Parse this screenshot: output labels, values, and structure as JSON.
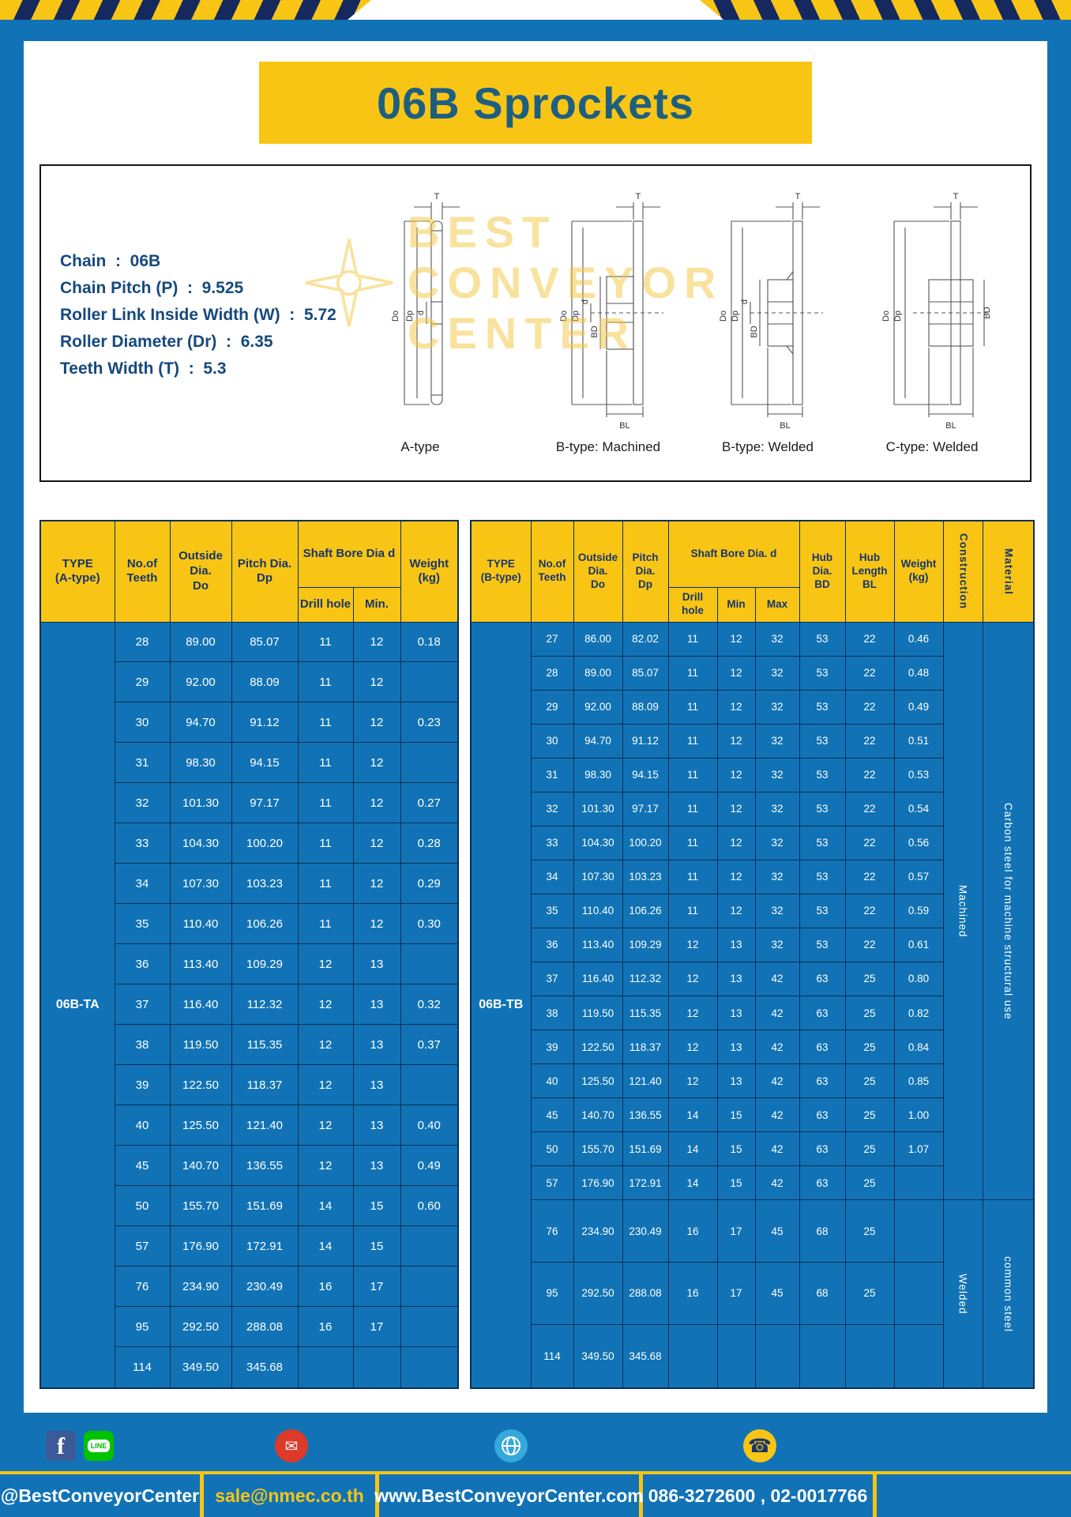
{
  "theme": {
    "accent_yellow": "#F8C515",
    "frame_blue": "#1173B5",
    "header_text_navy": "#17356D",
    "title_teal": "#1E5F80",
    "grid_navy": "#0C2F57"
  },
  "title": "06B Sprockets",
  "specs": [
    {
      "label": "Chain",
      "value": "06B"
    },
    {
      "label": "Chain Pitch (P)",
      "value": "9.525"
    },
    {
      "label": "Roller Link Inside Width (W)",
      "value": "5.72"
    },
    {
      "label": "Roller Diameter (Dr)",
      "value": "6.35"
    },
    {
      "label": "Teeth Width (T)",
      "value": "5.3"
    }
  ],
  "watermark": {
    "line1": "BEST",
    "line2": "CONVEYOR",
    "line3": "CENTER"
  },
  "diagrams": {
    "captions": [
      "A-type",
      "B-type: Machined",
      "B-type: Welded",
      "C-type: Welded"
    ],
    "labels": {
      "t": "T",
      "dia_outside": "Do",
      "dia_pitch": "Dp",
      "bore": "d",
      "hub_dia": "BD",
      "hub_len": "BL"
    }
  },
  "table_a": {
    "type_value": "06B-TA",
    "headers": {
      "type": "TYPE\n(A-type)",
      "teeth": "No.of\nTeeth",
      "outside": "Outside\nDia.\nDo",
      "pitch": "Pitch Dia.\nDp",
      "shaft_group": "Shaft Bore Dia d",
      "drill": "Drill hole",
      "min": "Min.",
      "weight": "Weight\n(kg)"
    },
    "rows": [
      [
        "28",
        "89.00",
        "85.07",
        "11",
        "12",
        "0.18"
      ],
      [
        "29",
        "92.00",
        "88.09",
        "11",
        "12",
        ""
      ],
      [
        "30",
        "94.70",
        "91.12",
        "11",
        "12",
        "0.23"
      ],
      [
        "31",
        "98.30",
        "94.15",
        "11",
        "12",
        ""
      ],
      [
        "32",
        "101.30",
        "97.17",
        "11",
        "12",
        "0.27"
      ],
      [
        "33",
        "104.30",
        "100.20",
        "11",
        "12",
        "0.28"
      ],
      [
        "34",
        "107.30",
        "103.23",
        "11",
        "12",
        "0.29"
      ],
      [
        "35",
        "110.40",
        "106.26",
        "11",
        "12",
        "0.30"
      ],
      [
        "36",
        "113.40",
        "109.29",
        "12",
        "13",
        ""
      ],
      [
        "37",
        "116.40",
        "112.32",
        "12",
        "13",
        "0.32"
      ],
      [
        "38",
        "119.50",
        "115.35",
        "12",
        "13",
        "0.37"
      ],
      [
        "39",
        "122.50",
        "118.37",
        "12",
        "13",
        ""
      ],
      [
        "40",
        "125.50",
        "121.40",
        "12",
        "13",
        "0.40"
      ],
      [
        "45",
        "140.70",
        "136.55",
        "12",
        "13",
        "0.49"
      ],
      [
        "50",
        "155.70",
        "151.69",
        "14",
        "15",
        "0.60"
      ],
      [
        "57",
        "176.90",
        "172.91",
        "14",
        "15",
        ""
      ],
      [
        "76",
        "234.90",
        "230.49",
        "16",
        "17",
        ""
      ],
      [
        "95",
        "292.50",
        "288.08",
        "16",
        "17",
        ""
      ],
      [
        "114",
        "349.50",
        "345.68",
        "",
        "",
        ""
      ]
    ]
  },
  "table_b": {
    "type_value": "06B-TB",
    "headers": {
      "type": "TYPE\n(B-type)",
      "teeth": "No.of\nTeeth",
      "outside": "Outside\nDia.\nDo",
      "pitch": "Pitch\nDia.\nDp",
      "shaft_group": "Shaft Bore Dia. d",
      "drill": "Drill hole",
      "min": "Min",
      "max": "Max",
      "hub_dia": "Hub\nDia.\nBD",
      "hub_len": "Hub\nLength\nBL",
      "weight": "Weight\n(kg)",
      "construction": "Construction",
      "material": "Material"
    },
    "rows": [
      [
        "27",
        "86.00",
        "82.02",
        "11",
        "12",
        "32",
        "53",
        "22",
        "0.46"
      ],
      [
        "28",
        "89.00",
        "85.07",
        "11",
        "12",
        "32",
        "53",
        "22",
        "0.48"
      ],
      [
        "29",
        "92.00",
        "88.09",
        "11",
        "12",
        "32",
        "53",
        "22",
        "0.49"
      ],
      [
        "30",
        "94.70",
        "91.12",
        "11",
        "12",
        "32",
        "53",
        "22",
        "0.51"
      ],
      [
        "31",
        "98.30",
        "94.15",
        "11",
        "12",
        "32",
        "53",
        "22",
        "0.53"
      ],
      [
        "32",
        "101.30",
        "97.17",
        "11",
        "12",
        "32",
        "53",
        "22",
        "0.54"
      ],
      [
        "33",
        "104.30",
        "100.20",
        "11",
        "12",
        "32",
        "53",
        "22",
        "0.56"
      ],
      [
        "34",
        "107.30",
        "103.23",
        "11",
        "12",
        "32",
        "53",
        "22",
        "0.57"
      ],
      [
        "35",
        "110.40",
        "106.26",
        "11",
        "12",
        "32",
        "53",
        "22",
        "0.59"
      ],
      [
        "36",
        "113.40",
        "109.29",
        "12",
        "13",
        "32",
        "53",
        "22",
        "0.61"
      ],
      [
        "37",
        "116.40",
        "112.32",
        "12",
        "13",
        "42",
        "63",
        "25",
        "0.80"
      ],
      [
        "38",
        "119.50",
        "115.35",
        "12",
        "13",
        "42",
        "63",
        "25",
        "0.82"
      ],
      [
        "39",
        "122.50",
        "118.37",
        "12",
        "13",
        "42",
        "63",
        "25",
        "0.84"
      ],
      [
        "40",
        "125.50",
        "121.40",
        "12",
        "13",
        "42",
        "63",
        "25",
        "0.85"
      ],
      [
        "45",
        "140.70",
        "136.55",
        "14",
        "15",
        "42",
        "63",
        "25",
        "1.00"
      ],
      [
        "50",
        "155.70",
        "151.69",
        "14",
        "15",
        "42",
        "63",
        "25",
        "1.07"
      ],
      [
        "57",
        "176.90",
        "172.91",
        "14",
        "15",
        "42",
        "63",
        "25",
        ""
      ],
      [
        "76",
        "234.90",
        "230.49",
        "16",
        "17",
        "45",
        "68",
        "25",
        ""
      ],
      [
        "95",
        "292.50",
        "288.08",
        "16",
        "17",
        "45",
        "68",
        "25",
        ""
      ],
      [
        "114",
        "349.50",
        "345.68",
        "",
        "",
        "",
        "",
        "",
        ""
      ]
    ],
    "construction_groups": [
      {
        "label": "Machined",
        "rows": 17
      },
      {
        "label": "Welded",
        "rows": 3
      }
    ],
    "material_groups": [
      {
        "label": "Carbon steel for machine structural use",
        "rows": 17
      },
      {
        "label": "common steel",
        "rows": 3
      }
    ]
  },
  "footer": {
    "handle": "@BestConveyorCenter",
    "email": "sale@nmec.co.th",
    "website": "www.BestConveyorCenter.com",
    "phone": "086-3272600 , 02-0017766",
    "facebook_letter": "f",
    "line_badge": "LINE",
    "mail_glyph": "✉",
    "phone_glyph": "☎"
  }
}
